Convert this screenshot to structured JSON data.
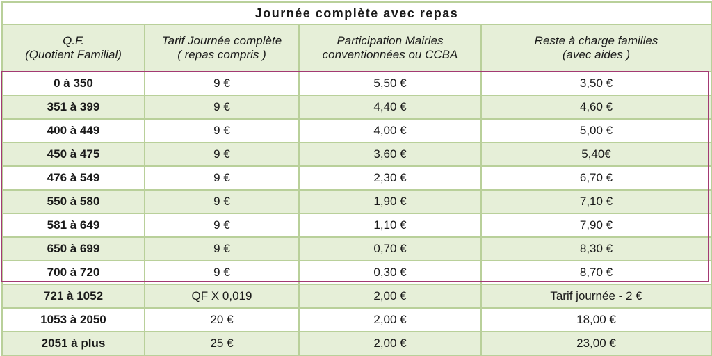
{
  "title": "Journée complète avec repas",
  "headers": [
    {
      "line1": "Q.F.",
      "line2": "(Quotient Familial)"
    },
    {
      "line1": "Tarif Journée complète",
      "line2": "( repas compris )"
    },
    {
      "line1": "Participation  Mairies",
      "line2": "conventionnées ou CCBA"
    },
    {
      "line1": "Reste à charge familles",
      "line2": "(avec aides )"
    }
  ],
  "rows": [
    [
      "0 à 350",
      "9 €",
      "5,50 €",
      "3,50 €"
    ],
    [
      "351 à 399",
      "9 €",
      "4,40 €",
      "4,60 €"
    ],
    [
      "400 à 449",
      "9 €",
      "4,00 €",
      "5,00 €"
    ],
    [
      "450 à 475",
      "9 €",
      "3,60 €",
      "5,40€"
    ],
    [
      "476 à 549",
      "9 €",
      "2,30 €",
      "6,70 €"
    ],
    [
      "550 à 580",
      "9 €",
      "1,90 €",
      "7,10 €"
    ],
    [
      "581 à 649",
      "9 €",
      "1,10 €",
      "7,90 €"
    ],
    [
      "650 à 699",
      "9 €",
      "0,70 €",
      "8,30 €"
    ],
    [
      "700 à 720",
      "9 €",
      "0,30 €",
      "8,70 €"
    ],
    [
      "721 à 1052",
      "QF X 0,019",
      "2,00 €",
      "Tarif journée - 2 €"
    ],
    [
      "1053 à 2050",
      "20 €",
      "2,00 €",
      "18,00 €"
    ],
    [
      "2051 à plus",
      "25 €",
      "2,00 €",
      "23,00 €"
    ]
  ],
  "colors": {
    "border": "#b9d09a",
    "stripe": "#e6efd8",
    "highlight": "#a33a73"
  }
}
